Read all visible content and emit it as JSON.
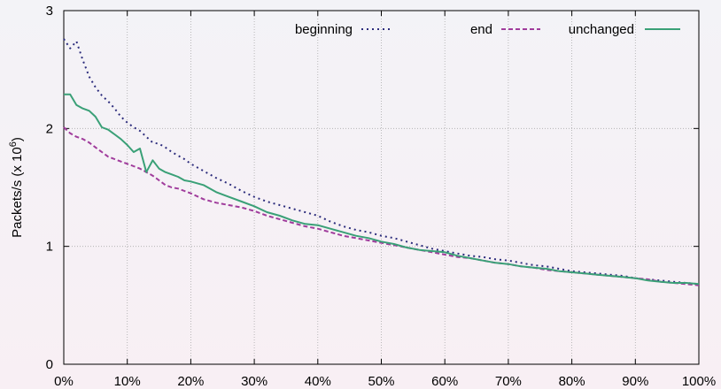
{
  "chart_data": {
    "type": "line",
    "title": "",
    "xlabel": "",
    "ylabel": "Packets/s (x 10^6)",
    "ylabel_parts": {
      "base": "Packets/s (x 10",
      "exp": "6",
      "close": ")"
    },
    "xlim": [
      0,
      100
    ],
    "ylim": [
      0,
      3
    ],
    "grid": true,
    "legend_position": "top",
    "x_ticks": [
      0,
      10,
      20,
      30,
      40,
      50,
      60,
      70,
      80,
      90,
      100
    ],
    "x_tick_labels": [
      "0%",
      "10%",
      "20%",
      "30%",
      "40%",
      "50%",
      "60%",
      "70%",
      "80%",
      "90%",
      "100%"
    ],
    "y_ticks": [
      0,
      1,
      2,
      3
    ],
    "y_tick_labels": [
      "0",
      "1",
      "2",
      "3"
    ],
    "series": [
      {
        "name": "beginning",
        "color": "#2c2c7c",
        "dash": "dotted",
        "points": [
          [
            0,
            2.76
          ],
          [
            1,
            2.68
          ],
          [
            2,
            2.74
          ],
          [
            3,
            2.58
          ],
          [
            4,
            2.44
          ],
          [
            5,
            2.35
          ],
          [
            6,
            2.28
          ],
          [
            7,
            2.23
          ],
          [
            8,
            2.17
          ],
          [
            9,
            2.1
          ],
          [
            10,
            2.05
          ],
          [
            11,
            2.01
          ],
          [
            12,
            1.98
          ],
          [
            13,
            1.93
          ],
          [
            14,
            1.88
          ],
          [
            15,
            1.87
          ],
          [
            16,
            1.84
          ],
          [
            17,
            1.8
          ],
          [
            18,
            1.77
          ],
          [
            19,
            1.74
          ],
          [
            20,
            1.7
          ],
          [
            22,
            1.64
          ],
          [
            24,
            1.58
          ],
          [
            26,
            1.53
          ],
          [
            28,
            1.47
          ],
          [
            30,
            1.42
          ],
          [
            32,
            1.38
          ],
          [
            34,
            1.35
          ],
          [
            36,
            1.32
          ],
          [
            38,
            1.29
          ],
          [
            40,
            1.26
          ],
          [
            42,
            1.21
          ],
          [
            44,
            1.17
          ],
          [
            46,
            1.14
          ],
          [
            48,
            1.12
          ],
          [
            50,
            1.09
          ],
          [
            52,
            1.07
          ],
          [
            54,
            1.04
          ],
          [
            56,
            1.01
          ],
          [
            58,
            0.98
          ],
          [
            60,
            0.96
          ],
          [
            62,
            0.94
          ],
          [
            64,
            0.92
          ],
          [
            66,
            0.91
          ],
          [
            68,
            0.89
          ],
          [
            70,
            0.88
          ],
          [
            72,
            0.86
          ],
          [
            74,
            0.84
          ],
          [
            76,
            0.83
          ],
          [
            78,
            0.81
          ],
          [
            80,
            0.79
          ],
          [
            82,
            0.78
          ],
          [
            84,
            0.77
          ],
          [
            86,
            0.76
          ],
          [
            88,
            0.75
          ],
          [
            90,
            0.73
          ],
          [
            92,
            0.72
          ],
          [
            94,
            0.71
          ],
          [
            96,
            0.7
          ],
          [
            98,
            0.69
          ],
          [
            100,
            0.68
          ]
        ]
      },
      {
        "name": "end",
        "color": "#a03c9c",
        "dash": "dashed",
        "points": [
          [
            0,
            2.01
          ],
          [
            1,
            1.96
          ],
          [
            2,
            1.93
          ],
          [
            3,
            1.91
          ],
          [
            4,
            1.88
          ],
          [
            5,
            1.84
          ],
          [
            6,
            1.8
          ],
          [
            7,
            1.76
          ],
          [
            8,
            1.74
          ],
          [
            9,
            1.72
          ],
          [
            10,
            1.7
          ],
          [
            11,
            1.68
          ],
          [
            12,
            1.66
          ],
          [
            13,
            1.63
          ],
          [
            14,
            1.6
          ],
          [
            15,
            1.56
          ],
          [
            16,
            1.52
          ],
          [
            17,
            1.5
          ],
          [
            18,
            1.49
          ],
          [
            19,
            1.47
          ],
          [
            20,
            1.45
          ],
          [
            22,
            1.4
          ],
          [
            24,
            1.37
          ],
          [
            26,
            1.35
          ],
          [
            28,
            1.33
          ],
          [
            30,
            1.3
          ],
          [
            32,
            1.26
          ],
          [
            34,
            1.23
          ],
          [
            36,
            1.2
          ],
          [
            38,
            1.17
          ],
          [
            40,
            1.15
          ],
          [
            42,
            1.12
          ],
          [
            44,
            1.09
          ],
          [
            46,
            1.07
          ],
          [
            48,
            1.05
          ],
          [
            50,
            1.03
          ],
          [
            52,
            1.01
          ],
          [
            54,
            0.99
          ],
          [
            56,
            0.97
          ],
          [
            58,
            0.95
          ],
          [
            60,
            0.93
          ],
          [
            62,
            0.91
          ],
          [
            64,
            0.9
          ],
          [
            66,
            0.88
          ],
          [
            68,
            0.86
          ],
          [
            70,
            0.85
          ],
          [
            72,
            0.83
          ],
          [
            74,
            0.82
          ],
          [
            76,
            0.8
          ],
          [
            78,
            0.79
          ],
          [
            80,
            0.78
          ],
          [
            82,
            0.77
          ],
          [
            84,
            0.76
          ],
          [
            86,
            0.75
          ],
          [
            88,
            0.74
          ],
          [
            90,
            0.73
          ],
          [
            92,
            0.72
          ],
          [
            94,
            0.7
          ],
          [
            96,
            0.69
          ],
          [
            98,
            0.68
          ],
          [
            100,
            0.67
          ]
        ]
      },
      {
        "name": "unchanged",
        "color": "#3aa077",
        "dash": "solid",
        "points": [
          [
            0,
            2.29
          ],
          [
            1,
            2.29
          ],
          [
            2,
            2.2
          ],
          [
            3,
            2.17
          ],
          [
            4,
            2.15
          ],
          [
            5,
            2.1
          ],
          [
            6,
            2.01
          ],
          [
            7,
            1.99
          ],
          [
            8,
            1.95
          ],
          [
            9,
            1.91
          ],
          [
            10,
            1.86
          ],
          [
            11,
            1.8
          ],
          [
            12,
            1.83
          ],
          [
            13,
            1.63
          ],
          [
            14,
            1.73
          ],
          [
            15,
            1.66
          ],
          [
            16,
            1.63
          ],
          [
            17,
            1.61
          ],
          [
            18,
            1.59
          ],
          [
            19,
            1.56
          ],
          [
            20,
            1.55
          ],
          [
            22,
            1.52
          ],
          [
            24,
            1.46
          ],
          [
            26,
            1.42
          ],
          [
            28,
            1.38
          ],
          [
            30,
            1.34
          ],
          [
            32,
            1.29
          ],
          [
            34,
            1.26
          ],
          [
            36,
            1.22
          ],
          [
            38,
            1.19
          ],
          [
            40,
            1.18
          ],
          [
            42,
            1.15
          ],
          [
            44,
            1.12
          ],
          [
            46,
            1.09
          ],
          [
            48,
            1.07
          ],
          [
            50,
            1.04
          ],
          [
            52,
            1.02
          ],
          [
            54,
            0.99
          ],
          [
            56,
            0.97
          ],
          [
            58,
            0.96
          ],
          [
            60,
            0.95
          ],
          [
            62,
            0.92
          ],
          [
            64,
            0.9
          ],
          [
            66,
            0.88
          ],
          [
            68,
            0.86
          ],
          [
            70,
            0.85
          ],
          [
            72,
            0.83
          ],
          [
            74,
            0.82
          ],
          [
            76,
            0.81
          ],
          [
            78,
            0.79
          ],
          [
            80,
            0.78
          ],
          [
            82,
            0.77
          ],
          [
            84,
            0.76
          ],
          [
            86,
            0.75
          ],
          [
            88,
            0.74
          ],
          [
            90,
            0.73
          ],
          [
            92,
            0.71
          ],
          [
            94,
            0.7
          ],
          [
            96,
            0.69
          ],
          [
            98,
            0.69
          ],
          [
            100,
            0.68
          ]
        ]
      }
    ]
  }
}
